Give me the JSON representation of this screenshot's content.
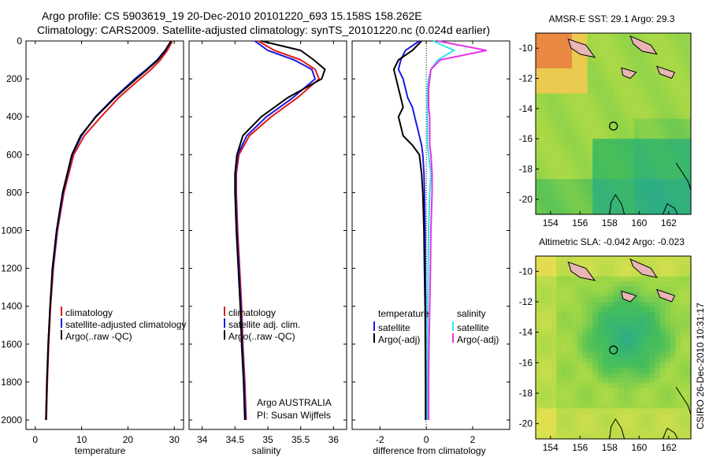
{
  "header": {
    "line1": "Argo profile: CS 5903619_19 20-Dec-2010 20101220_693 15.158S 158.262E",
    "line2": "Climatology: CARS2009. Satellite-adjusted climatology: synTS_20101220.nc (0.024d earlier)"
  },
  "footer": {
    "credit1": "Argo AUSTRALIA",
    "credit2": "PI: Susan Wijffels",
    "stamp": "CSIRO 26-Dec-2010 10:31:17"
  },
  "depth_ticks": [
    "0",
    "200",
    "400",
    "600",
    "800",
    "1000",
    "1200",
    "1400",
    "1600",
    "1800",
    "2000"
  ],
  "colors": {
    "climatology": "#e11a1a",
    "satellite": "#1a1ae6",
    "argo": "#000000",
    "sal_satellite": "#2ee8e8",
    "sal_argo": "#e633e6",
    "sea_base": "#9fd83f",
    "land": "#e8b4b4"
  },
  "chart_data": [
    {
      "type": "line",
      "title": "",
      "xlabel": "temperature",
      "ylabel": "",
      "xlim": [
        -2,
        32
      ],
      "ylim": [
        2050,
        0
      ],
      "xticks": [
        "0",
        "10",
        "20",
        "30"
      ],
      "xtick_values": [
        0,
        10,
        20,
        30
      ],
      "legend": [
        "climatology",
        "satellite-adjusted climatology",
        "Argo(..raw -QC)"
      ],
      "legend_location": "lower-middle",
      "depth": [
        0,
        50,
        100,
        150,
        200,
        300,
        400,
        500,
        600,
        800,
        1000,
        1200,
        1400,
        1600,
        1800,
        2000
      ],
      "series": [
        {
          "name": "climatology",
          "color": "climatology",
          "values": [
            29.6,
            28.5,
            27.0,
            25.0,
            22.6,
            18.0,
            14.2,
            10.6,
            8.3,
            6.2,
            4.8,
            3.9,
            3.3,
            2.9,
            2.6,
            2.4
          ]
        },
        {
          "name": "satellite-adjusted climatology",
          "color": "satellite",
          "values": [
            29.3,
            28.0,
            26.3,
            24.0,
            21.5,
            17.0,
            13.0,
            10.0,
            8.0,
            6.0,
            4.7,
            3.8,
            3.2,
            2.8,
            2.5,
            2.3
          ]
        },
        {
          "name": "Argo(..raw -QC)",
          "color": "argo",
          "values": [
            29.3,
            28.1,
            26.5,
            24.2,
            21.8,
            17.2,
            13.1,
            9.8,
            7.9,
            5.9,
            4.6,
            3.7,
            3.2,
            2.8,
            2.5,
            2.3
          ]
        }
      ]
    },
    {
      "type": "line",
      "xlabel": "salinity",
      "xlim": [
        33.8,
        36.2
      ],
      "ylim": [
        2050,
        0
      ],
      "xticks": [
        "34",
        "34.5",
        "35",
        "35.5",
        "36"
      ],
      "xtick_values": [
        34,
        34.5,
        35,
        35.5,
        36
      ],
      "legend": [
        "climatology",
        "satellite adj. clim.",
        "Argo(..raw -QC)"
      ],
      "legend_location": "lower-middle",
      "depth": [
        0,
        50,
        100,
        150,
        200,
        300,
        400,
        500,
        600,
        700,
        800,
        1000,
        1200,
        1400,
        1600,
        1800,
        2000
      ],
      "series": [
        {
          "name": "climatology",
          "color": "climatology",
          "values": [
            34.85,
            35.1,
            35.5,
            35.72,
            35.78,
            35.45,
            35.05,
            34.72,
            34.56,
            34.52,
            34.52,
            34.54,
            34.57,
            34.6,
            34.62,
            34.65,
            34.67
          ]
        },
        {
          "name": "satellite adj. clim.",
          "color": "satellite",
          "values": [
            34.8,
            35.0,
            35.4,
            35.67,
            35.72,
            35.38,
            34.98,
            34.68,
            34.54,
            34.51,
            34.51,
            34.53,
            34.56,
            34.59,
            34.61,
            34.64,
            34.66
          ]
        },
        {
          "name": "Argo(..raw -QC)",
          "color": "argo",
          "values": [
            34.9,
            35.5,
            35.7,
            35.87,
            35.82,
            35.3,
            34.9,
            34.62,
            34.53,
            34.5,
            34.5,
            34.52,
            34.55,
            34.58,
            34.6,
            34.63,
            34.65
          ]
        }
      ]
    },
    {
      "type": "line",
      "xlabel": "difference from climatology",
      "xlim": [
        -3.2,
        3.6
      ],
      "ylim": [
        2050,
        0
      ],
      "xticks": [
        "-2",
        "0",
        "2"
      ],
      "xtick_values": [
        -2,
        0,
        2
      ],
      "zero_line": true,
      "legend_groups": [
        {
          "title": "temperature",
          "items": [
            "satellite",
            "Argo(-adj)"
          ]
        },
        {
          "title": "salinity",
          "items": [
            "satellite",
            "Argo(-adj)"
          ]
        }
      ],
      "depth": [
        0,
        50,
        100,
        150,
        200,
        250,
        300,
        350,
        400,
        450,
        500,
        550,
        600,
        700,
        800,
        1000,
        1200,
        1400,
        1600,
        1800,
        2000
      ],
      "series": [
        {
          "name": "temperature satellite",
          "color": "satellite",
          "values": [
            -0.3,
            -0.9,
            -1.1,
            -1.2,
            -1.0,
            -0.9,
            -0.8,
            -0.6,
            -0.5,
            -0.4,
            -0.3,
            -0.2,
            -0.15,
            -0.1,
            -0.08,
            -0.05,
            -0.04,
            -0.03,
            -0.03,
            -0.02,
            -0.02
          ]
        },
        {
          "name": "temperature Argo(-adj)",
          "color": "argo",
          "values": [
            -0.2,
            -0.6,
            -1.2,
            -1.4,
            -1.3,
            -1.2,
            -1.1,
            -1.0,
            -1.2,
            -1.1,
            -1.0,
            -0.6,
            -0.3,
            -0.2,
            -0.15,
            -0.1,
            -0.08,
            -0.05,
            -0.04,
            -0.03,
            -0.03
          ]
        },
        {
          "name": "salinity satellite",
          "color": "sal_satellite",
          "values": [
            0.3,
            1.2,
            0.5,
            0.2,
            0.1,
            0.05,
            0.05,
            0.05,
            0.05,
            0.05,
            0.05,
            0.05,
            0.1,
            0.2,
            0.15,
            0.1,
            0.08,
            0.06,
            0.05,
            0.05,
            0.05
          ]
        },
        {
          "name": "salinity Argo(-adj)",
          "color": "sal_argo",
          "values": [
            0.5,
            2.6,
            0.6,
            0.2,
            0.15,
            0.1,
            0.1,
            0.1,
            0.15,
            0.15,
            0.15,
            0.15,
            0.2,
            0.25,
            0.25,
            0.2,
            0.18,
            0.15,
            0.12,
            0.1,
            0.1
          ]
        }
      ]
    },
    {
      "type": "heatmap",
      "title": "AMSR-E SST: 29.1 Argo: 29.3",
      "xlim": [
        153,
        163.5
      ],
      "ylim": [
        -21,
        -9
      ],
      "xticks": [
        "154",
        "156",
        "158",
        "160",
        "162"
      ],
      "xtick_values": [
        154,
        156,
        158,
        160,
        162
      ],
      "yticks": [
        "-10",
        "-12",
        "-14",
        "-16",
        "-18",
        "-20"
      ],
      "ytick_values": [
        -10,
        -12,
        -14,
        -16,
        -18,
        -20
      ],
      "marker": {
        "lon": 158.262,
        "lat": -15.158
      }
    },
    {
      "type": "heatmap",
      "title": "Altimetric SLA: -0.042 Argo: -0.023",
      "xlim": [
        153,
        163.5
      ],
      "ylim": [
        -21,
        -9
      ],
      "xticks": [
        "154",
        "156",
        "158",
        "160",
        "162"
      ],
      "xtick_values": [
        154,
        156,
        158,
        160,
        162
      ],
      "yticks": [
        "-10",
        "-12",
        "-14",
        "-16",
        "-18",
        "-20"
      ],
      "ytick_values": [
        -10,
        -12,
        -14,
        -16,
        -18,
        -20
      ],
      "marker": {
        "lon": 158.262,
        "lat": -15.158
      }
    }
  ]
}
